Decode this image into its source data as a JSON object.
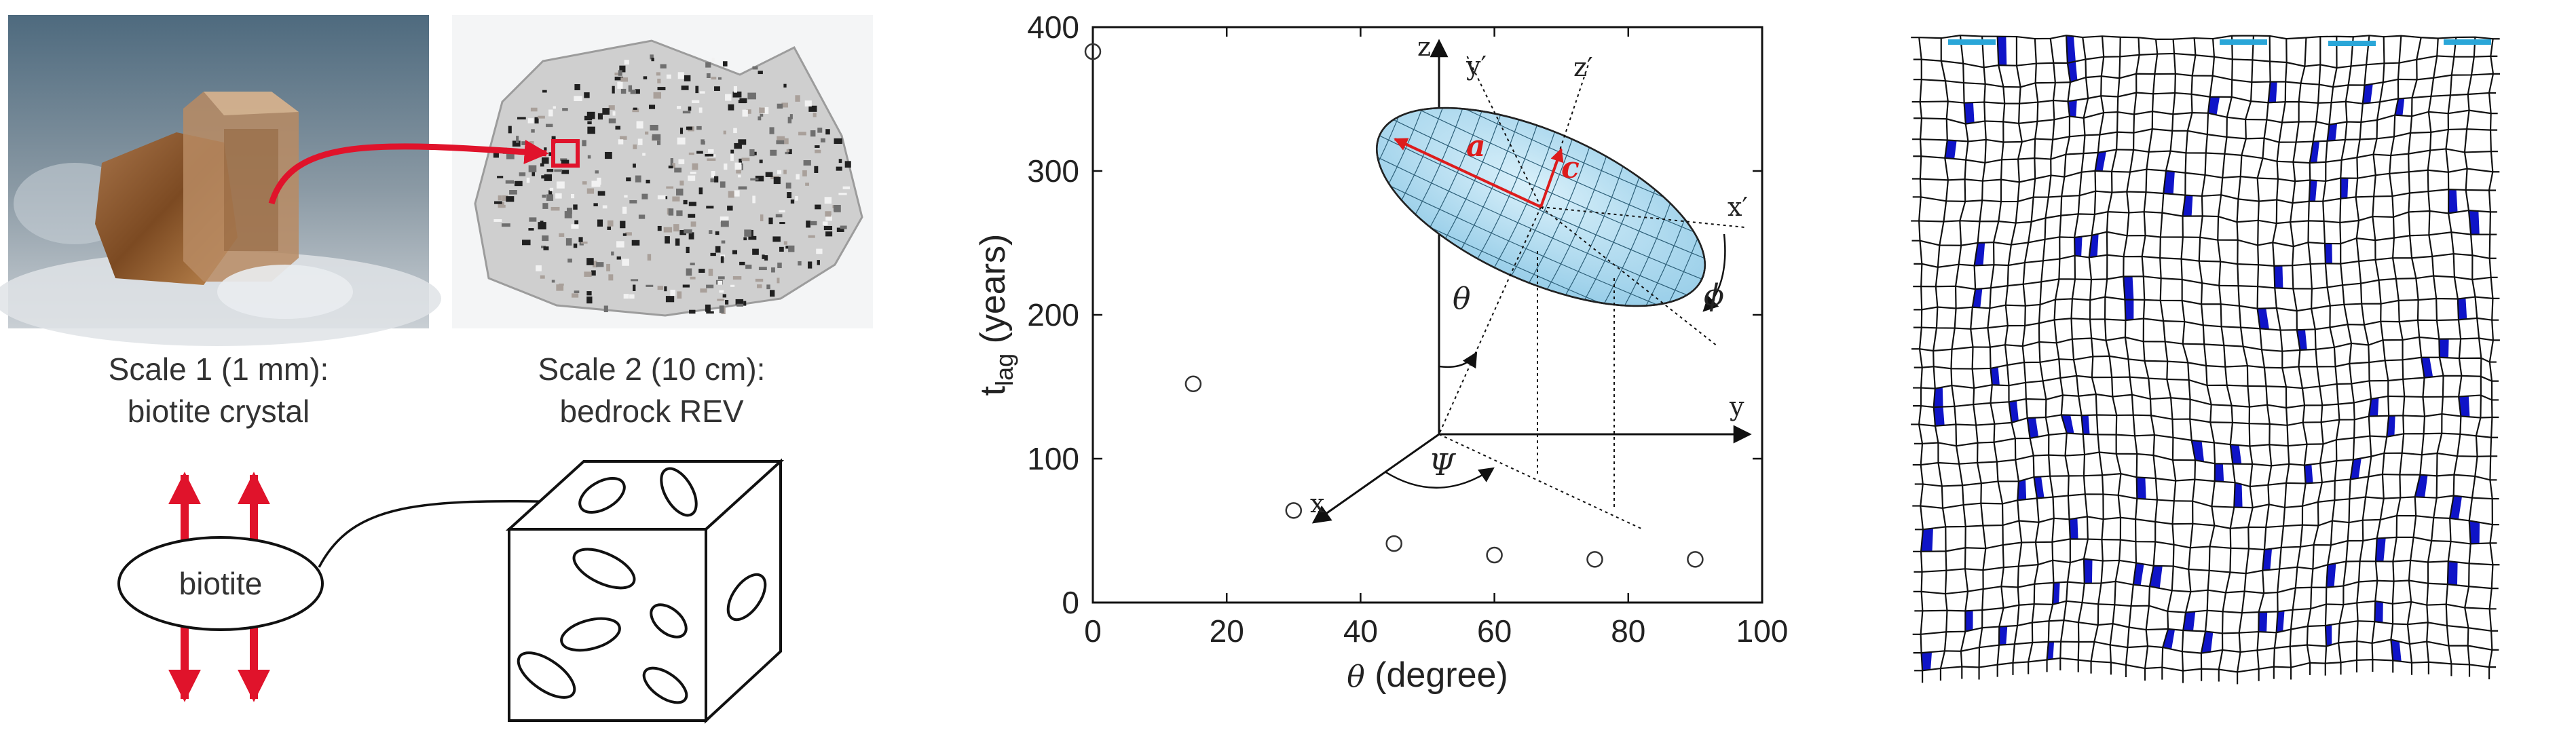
{
  "panel_left": {
    "caption1_line1": "Scale 1 (1 mm):",
    "caption1_line2": "biotite crystal",
    "caption2_line1": "Scale 2 (10 cm):",
    "caption2_line2": "bedrock REV",
    "ellipse_label": "biotite"
  },
  "chart_data": {
    "type": "scatter",
    "x": [
      0,
      15,
      30,
      45,
      60,
      75,
      90
    ],
    "y": [
      383,
      152,
      64,
      41,
      33,
      30,
      30
    ],
    "xlabel": "θ (degree)",
    "ylabel_main": "t",
    "ylabel_sub": "lag",
    "ylabel_units": " (years)",
    "xlim": [
      0,
      100
    ],
    "ylim": [
      0,
      400
    ],
    "xticks": [
      "0",
      "20",
      "40",
      "60",
      "80",
      "100"
    ],
    "yticks": [
      "0",
      "100",
      "200",
      "300",
      "400"
    ],
    "marker": "open-circle",
    "grid": false
  },
  "inset": {
    "axis_x": "x",
    "axis_y": "y",
    "axis_z": "z",
    "axis_xp": "x′",
    "axis_yp": "y′",
    "axis_zp": "z′",
    "semi_a": "a",
    "semi_c": "c",
    "angle_theta": "θ",
    "angle_phi": "ϕ",
    "angle_psi": "Ψ",
    "ellipsoid_color": "#bfe3f3",
    "semi_axis_color": "#dd1c1c"
  },
  "colors": {
    "arrow_red": "#e0132b",
    "mesh_blue": "#0f14c8"
  }
}
